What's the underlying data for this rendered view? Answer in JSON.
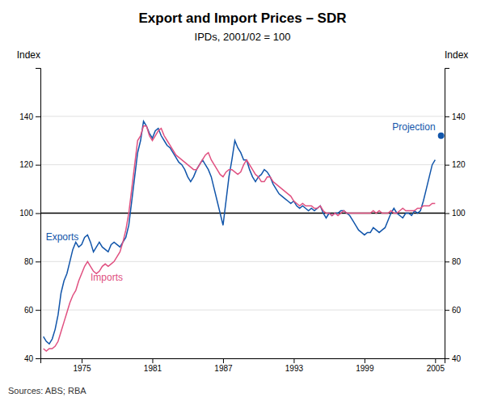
{
  "chart_data": {
    "type": "line",
    "title": "Export and Import Prices – SDR",
    "subtitle": "IPDs, 2001/02 = 100",
    "ylabel": "Index",
    "y2label": "Index",
    "source": "Sources: ABS; RBA",
    "xlim": [
      1971.5,
      2005.8
    ],
    "xticks": [
      1975,
      1981,
      1987,
      1993,
      1999,
      2005
    ],
    "ylim": [
      40,
      160
    ],
    "yticks": [
      40,
      60,
      80,
      100,
      120,
      140
    ],
    "y2lim": [
      40,
      160
    ],
    "y2ticks": [
      40,
      60,
      80,
      100,
      120,
      140
    ],
    "grid": true,
    "hlines": [
      100
    ],
    "x": [
      1971.75,
      1972.0,
      1972.25,
      1972.5,
      1972.75,
      1973.0,
      1973.25,
      1973.5,
      1973.75,
      1974.0,
      1974.25,
      1974.5,
      1974.75,
      1975.0,
      1975.25,
      1975.5,
      1975.75,
      1976.0,
      1976.25,
      1976.5,
      1976.75,
      1977.0,
      1977.25,
      1977.5,
      1977.75,
      1978.0,
      1978.25,
      1978.5,
      1978.75,
      1979.0,
      1979.25,
      1979.5,
      1979.75,
      1980.0,
      1980.25,
      1980.5,
      1980.75,
      1981.0,
      1981.25,
      1981.5,
      1981.75,
      1982.0,
      1982.25,
      1982.5,
      1982.75,
      1983.0,
      1983.25,
      1983.5,
      1983.75,
      1984.0,
      1984.25,
      1984.5,
      1984.75,
      1985.0,
      1985.25,
      1985.5,
      1985.75,
      1986.0,
      1986.25,
      1986.5,
      1986.75,
      1987.0,
      1987.25,
      1987.5,
      1987.75,
      1988.0,
      1988.25,
      1988.5,
      1988.75,
      1989.0,
      1989.25,
      1989.5,
      1989.75,
      1990.0,
      1990.25,
      1990.5,
      1990.75,
      1991.0,
      1991.25,
      1991.5,
      1991.75,
      1992.0,
      1992.25,
      1992.5,
      1992.75,
      1993.0,
      1993.25,
      1993.5,
      1993.75,
      1994.0,
      1994.25,
      1994.5,
      1994.75,
      1995.0,
      1995.25,
      1995.5,
      1995.75,
      1996.0,
      1996.25,
      1996.5,
      1996.75,
      1997.0,
      1997.25,
      1997.5,
      1997.75,
      1998.0,
      1998.25,
      1998.5,
      1998.75,
      1999.0,
      1999.25,
      1999.5,
      1999.75,
      2000.0,
      2000.25,
      2000.5,
      2000.75,
      2001.0,
      2001.25,
      2001.5,
      2001.75,
      2002.0,
      2002.25,
      2002.5,
      2002.75,
      2003.0,
      2003.25,
      2003.5,
      2003.75,
      2004.0,
      2004.25,
      2004.5,
      2004.75,
      2005.0
    ],
    "series": [
      {
        "name": "Exports",
        "type": "line",
        "color": "#1155aa",
        "values": [
          49,
          47,
          46,
          48,
          52,
          58,
          67,
          72,
          75,
          80,
          85,
          88,
          86,
          87,
          90,
          91,
          88,
          84,
          86,
          88,
          86,
          85,
          84,
          87,
          88,
          87,
          86,
          88,
          90,
          95,
          105,
          115,
          125,
          130,
          138,
          136,
          133,
          131,
          134,
          135,
          132,
          130,
          128,
          127,
          125,
          123,
          121,
          120,
          118,
          115,
          113,
          115,
          118,
          120,
          122,
          120,
          118,
          115,
          110,
          105,
          100,
          95,
          105,
          115,
          122,
          130,
          127,
          125,
          122,
          122,
          118,
          115,
          113,
          115,
          116,
          118,
          117,
          115,
          112,
          110,
          108,
          107,
          106,
          105,
          104,
          105,
          103,
          102,
          103,
          102,
          101,
          102,
          101,
          102,
          103,
          100,
          98,
          100,
          99,
          100,
          100,
          101,
          101,
          100,
          99,
          97,
          95,
          93,
          92,
          91,
          92,
          92,
          94,
          93,
          92,
          93,
          94,
          97,
          100,
          102,
          100,
          99,
          98,
          100,
          100,
          99,
          101,
          100,
          101,
          105,
          110,
          115,
          120,
          122
        ]
      },
      {
        "name": "Imports",
        "type": "line",
        "color": "#e05080",
        "values": [
          44,
          43,
          44,
          44,
          45,
          47,
          51,
          55,
          59,
          63,
          66,
          68,
          72,
          75,
          78,
          80,
          78,
          76,
          75,
          76,
          78,
          79,
          78,
          79,
          80,
          82,
          84,
          88,
          93,
          100,
          110,
          120,
          130,
          132,
          136,
          136,
          132,
          130,
          132,
          134,
          135,
          132,
          130,
          128,
          126,
          124,
          123,
          122,
          121,
          120,
          119,
          118,
          118,
          120,
          122,
          124,
          125,
          122,
          120,
          118,
          116,
          115,
          117,
          118,
          118,
          117,
          116,
          117,
          120,
          122,
          120,
          118,
          116,
          115,
          113,
          113,
          115,
          115,
          113,
          112,
          111,
          110,
          109,
          108,
          107,
          105,
          104,
          103,
          104,
          103,
          103,
          103,
          102,
          102,
          103,
          101,
          100,
          100,
          99,
          100,
          99,
          100,
          101,
          100,
          100,
          100,
          100,
          100,
          100,
          100,
          100,
          100,
          101,
          100,
          101,
          100,
          100,
          100,
          101,
          100,
          100,
          101,
          102,
          101,
          101,
          101,
          101,
          102,
          102,
          103,
          103,
          103,
          104,
          104
        ]
      },
      {
        "name": "Projection",
        "type": "scatter",
        "marker": "circle",
        "color": "#1155aa",
        "x": [
          2005.5
        ],
        "values": [
          132
        ]
      }
    ]
  }
}
